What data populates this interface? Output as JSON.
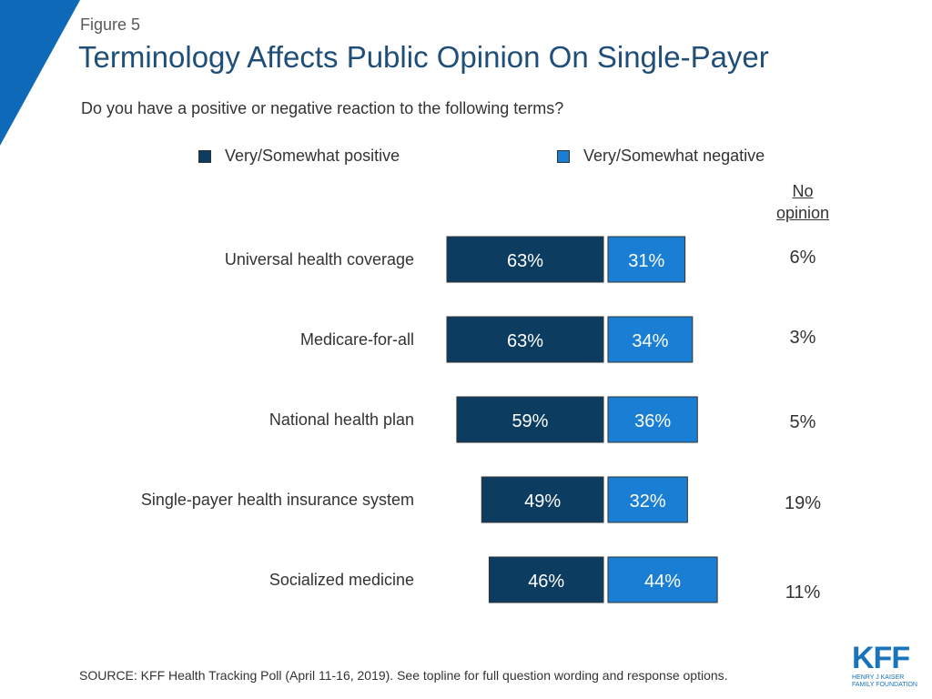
{
  "header": {
    "figure_label": "Figure 5",
    "title": "Terminology Affects Public Opinion On Single-Payer",
    "question": "Do you have a positive or negative reaction to the following terms?"
  },
  "legend": {
    "positive": "Very/Somewhat positive",
    "negative": "Very/Somewhat negative"
  },
  "no_opinion_header": [
    "No",
    "opinion"
  ],
  "colors": {
    "positive": "#0c3c60",
    "negative": "#1a7fd4",
    "accent": "#0e6ab8",
    "title": "#1f4e79"
  },
  "chart_data": {
    "type": "bar",
    "orientation": "horizontal-diverging",
    "title": "Terminology Affects Public Opinion On Single-Payer",
    "categories": [
      "Universal health coverage",
      "Medicare-for-all",
      "National health plan",
      "Single-payer health insurance system",
      "Socialized medicine"
    ],
    "series": [
      {
        "name": "Very/Somewhat positive",
        "values": [
          63,
          63,
          59,
          49,
          46
        ],
        "labels": [
          "63%",
          "63%",
          "59%",
          "49%",
          "46%"
        ]
      },
      {
        "name": "Very/Somewhat negative",
        "values": [
          31,
          34,
          36,
          32,
          44
        ],
        "labels": [
          "31%",
          "34%",
          "36%",
          "32%",
          "44%"
        ]
      },
      {
        "name": "No opinion",
        "values": [
          6,
          3,
          5,
          19,
          11
        ],
        "labels": [
          "6%",
          "3%",
          "5%",
          "19%",
          "11%"
        ]
      }
    ],
    "unit": "%"
  },
  "source": "SOURCE: KFF Health Tracking Poll (April 11-16, 2019). See topline for full question wording and response options.",
  "logo": {
    "mark": "KFF",
    "line1": "Henry J Kaiser",
    "line2": "Family Foundation"
  }
}
